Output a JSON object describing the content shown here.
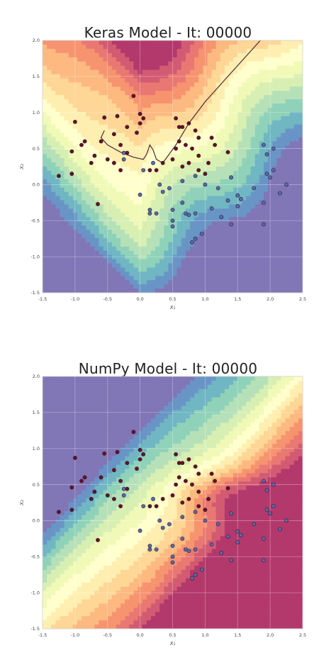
{
  "chart_data": [
    {
      "type": "scatter",
      "title": "Keras Model - It: 00000",
      "xlabel": "X₁",
      "ylabel": "X₂",
      "xlim": [
        -1.5,
        2.5
      ],
      "ylim": [
        -1.5,
        2.0
      ],
      "xticks": [
        "-1.5",
        "-1.0",
        "-0.5",
        "0.0",
        "0.5",
        "1.0",
        "1.5",
        "2.0",
        "2.5"
      ],
      "yticks": [
        "-1.5",
        "-1.0",
        "-0.5",
        "0.0",
        "0.5",
        "1.0",
        "1.5",
        "2.0"
      ],
      "grid": true,
      "background": "decision-contour",
      "colormap": "Spectral",
      "series": [
        {
          "color": "#6b0d2a",
          "points": [
            [
              -1.0,
              0.87
            ],
            [
              -0.55,
              0.93
            ],
            [
              -0.35,
              0.95
            ],
            [
              -0.1,
              1.23
            ],
            [
              0.0,
              0.98
            ],
            [
              0.05,
              0.92
            ],
            [
              0.0,
              0.85
            ],
            [
              -0.2,
              0.8
            ],
            [
              -0.05,
              0.72
            ],
            [
              -0.4,
              0.7
            ],
            [
              -0.6,
              0.6
            ],
            [
              -0.85,
              0.6
            ],
            [
              -0.9,
              0.55
            ],
            [
              -0.3,
              0.55
            ],
            [
              -0.2,
              0.44
            ],
            [
              -1.05,
              0.46
            ],
            [
              -0.7,
              0.4
            ],
            [
              -0.75,
              0.3
            ],
            [
              -0.5,
              0.35
            ],
            [
              -0.4,
              0.3
            ],
            [
              -1.25,
              0.12
            ],
            [
              -1.05,
              0.15
            ],
            [
              -0.3,
              0.2
            ],
            [
              -0.65,
              -0.27
            ],
            [
              0.15,
              0.2
            ],
            [
              0.55,
              0.92
            ],
            [
              0.6,
              0.8
            ],
            [
              0.65,
              0.8
            ],
            [
              0.75,
              0.85
            ],
            [
              0.85,
              0.75
            ],
            [
              0.9,
              0.65
            ],
            [
              1.1,
              0.65
            ],
            [
              0.6,
              0.6
            ],
            [
              0.7,
              0.55
            ],
            [
              0.55,
              0.5
            ],
            [
              0.8,
              0.5
            ],
            [
              0.5,
              0.35
            ],
            [
              0.35,
              0.3
            ],
            [
              0.9,
              0.4
            ],
            [
              1.05,
              0.3
            ],
            [
              0.25,
              0.2
            ],
            [
              0.9,
              0.2
            ],
            [
              1.0,
              0.15
            ],
            [
              0.65,
              0.25
            ],
            [
              1.35,
              0.45
            ],
            [
              1.15,
              0.55
            ],
            [
              0.75,
              0.3
            ]
          ]
        },
        {
          "color": "#5b67b5",
          "points": [
            [
              -0.25,
              0.44
            ],
            [
              -0.25,
              0.35
            ],
            [
              0.05,
              0.2
            ],
            [
              0.2,
              0.3
            ],
            [
              0.0,
              -0.14
            ],
            [
              0.15,
              -0.35
            ],
            [
              0.15,
              -0.4
            ],
            [
              0.25,
              -0.4
            ],
            [
              0.3,
              0.0
            ],
            [
              0.45,
              -0.05
            ],
            [
              0.35,
              -0.1
            ],
            [
              0.5,
              -0.35
            ],
            [
              0.5,
              -0.5
            ],
            [
              0.5,
              -0.58
            ],
            [
              0.65,
              -0.25
            ],
            [
              0.7,
              -0.4
            ],
            [
              0.75,
              -0.42
            ],
            [
              0.85,
              -0.4
            ],
            [
              0.8,
              -0.8
            ],
            [
              0.85,
              -0.75
            ],
            [
              0.95,
              -0.68
            ],
            [
              1.1,
              -0.33
            ],
            [
              1.2,
              -0.05
            ],
            [
              1.25,
              -0.45
            ],
            [
              1.35,
              -0.22
            ],
            [
              1.4,
              -0.55
            ],
            [
              1.5,
              -0.3
            ],
            [
              1.55,
              -0.2
            ],
            [
              1.75,
              -0.05
            ],
            [
              1.9,
              -0.25
            ],
            [
              1.9,
              -0.55
            ],
            [
              1.95,
              0.15
            ],
            [
              2.0,
              0.1
            ],
            [
              2.05,
              0.2
            ],
            [
              1.95,
              0.42
            ],
            [
              2.05,
              0.5
            ],
            [
              1.9,
              0.55
            ],
            [
              2.25,
              0.0
            ],
            [
              2.15,
              -0.12
            ],
            [
              1.4,
              0.1
            ],
            [
              1.5,
              -0.15
            ],
            [
              1.0,
              0.0
            ],
            [
              0.65,
              0.05
            ],
            [
              0.85,
              0.12
            ]
          ]
        }
      ]
    },
    {
      "type": "scatter",
      "title": "NumPy Model - It: 00000",
      "xlabel": "X₁",
      "ylabel": "X₂",
      "xlim": [
        -1.5,
        2.5
      ],
      "ylim": [
        -1.5,
        2.0
      ],
      "xticks": [
        "-1.5",
        "-1.0",
        "-0.5",
        "0.0",
        "0.5",
        "1.0",
        "1.5",
        "2.0",
        "2.5"
      ],
      "yticks": [
        "-1.5",
        "-1.0",
        "-0.5",
        "0.0",
        "0.5",
        "1.0",
        "1.5",
        "2.0"
      ],
      "grid": true,
      "background": "decision-contour",
      "colormap": "Spectral",
      "series": [
        {
          "color": "#6b0d2a",
          "points": [
            [
              -1.0,
              0.87
            ],
            [
              -0.55,
              0.93
            ],
            [
              -0.35,
              0.95
            ],
            [
              -0.1,
              1.23
            ],
            [
              0.0,
              0.98
            ],
            [
              0.05,
              0.92
            ],
            [
              0.0,
              0.85
            ],
            [
              -0.2,
              0.8
            ],
            [
              -0.05,
              0.72
            ],
            [
              -0.4,
              0.7
            ],
            [
              -0.6,
              0.6
            ],
            [
              -0.85,
              0.6
            ],
            [
              -0.9,
              0.55
            ],
            [
              -0.3,
              0.55
            ],
            [
              -0.2,
              0.44
            ],
            [
              -1.05,
              0.46
            ],
            [
              -0.7,
              0.4
            ],
            [
              -0.75,
              0.3
            ],
            [
              -0.5,
              0.35
            ],
            [
              -0.4,
              0.3
            ],
            [
              -1.25,
              0.12
            ],
            [
              -1.05,
              0.15
            ],
            [
              -0.3,
              0.2
            ],
            [
              -0.65,
              -0.27
            ],
            [
              0.15,
              0.2
            ],
            [
              0.55,
              0.92
            ],
            [
              0.6,
              0.8
            ],
            [
              0.65,
              0.8
            ],
            [
              0.75,
              0.85
            ],
            [
              0.85,
              0.75
            ],
            [
              0.9,
              0.65
            ],
            [
              1.1,
              0.65
            ],
            [
              0.6,
              0.6
            ],
            [
              0.7,
              0.55
            ],
            [
              0.55,
              0.5
            ],
            [
              0.8,
              0.5
            ],
            [
              0.5,
              0.35
            ],
            [
              0.35,
              0.3
            ],
            [
              0.9,
              0.4
            ],
            [
              1.05,
              0.3
            ],
            [
              0.25,
              0.2
            ],
            [
              0.9,
              0.2
            ],
            [
              1.0,
              0.15
            ],
            [
              0.65,
              0.25
            ],
            [
              1.35,
              0.45
            ],
            [
              1.15,
              0.55
            ],
            [
              0.75,
              0.3
            ]
          ]
        },
        {
          "color": "#5b67b5",
          "points": [
            [
              -0.25,
              0.44
            ],
            [
              -0.25,
              0.35
            ],
            [
              0.05,
              0.2
            ],
            [
              0.2,
              0.3
            ],
            [
              0.0,
              -0.14
            ],
            [
              0.15,
              -0.35
            ],
            [
              0.15,
              -0.4
            ],
            [
              0.25,
              -0.4
            ],
            [
              0.3,
              0.0
            ],
            [
              0.45,
              -0.05
            ],
            [
              0.35,
              -0.1
            ],
            [
              0.5,
              -0.35
            ],
            [
              0.5,
              -0.5
            ],
            [
              0.5,
              -0.58
            ],
            [
              0.65,
              -0.25
            ],
            [
              0.7,
              -0.4
            ],
            [
              0.75,
              -0.42
            ],
            [
              0.85,
              -0.4
            ],
            [
              0.8,
              -0.8
            ],
            [
              0.85,
              -0.75
            ],
            [
              0.95,
              -0.68
            ],
            [
              1.1,
              -0.33
            ],
            [
              1.2,
              -0.05
            ],
            [
              1.25,
              -0.45
            ],
            [
              1.35,
              -0.22
            ],
            [
              1.4,
              -0.55
            ],
            [
              1.5,
              -0.3
            ],
            [
              1.55,
              -0.2
            ],
            [
              1.75,
              -0.05
            ],
            [
              1.9,
              -0.25
            ],
            [
              1.9,
              -0.55
            ],
            [
              1.95,
              0.15
            ],
            [
              2.0,
              0.1
            ],
            [
              2.05,
              0.2
            ],
            [
              1.95,
              0.42
            ],
            [
              2.05,
              0.5
            ],
            [
              1.9,
              0.55
            ],
            [
              2.25,
              0.0
            ],
            [
              2.15,
              -0.12
            ],
            [
              1.4,
              0.1
            ],
            [
              1.5,
              -0.15
            ],
            [
              1.0,
              0.0
            ],
            [
              0.65,
              0.05
            ],
            [
              0.85,
              0.12
            ]
          ]
        }
      ]
    }
  ]
}
